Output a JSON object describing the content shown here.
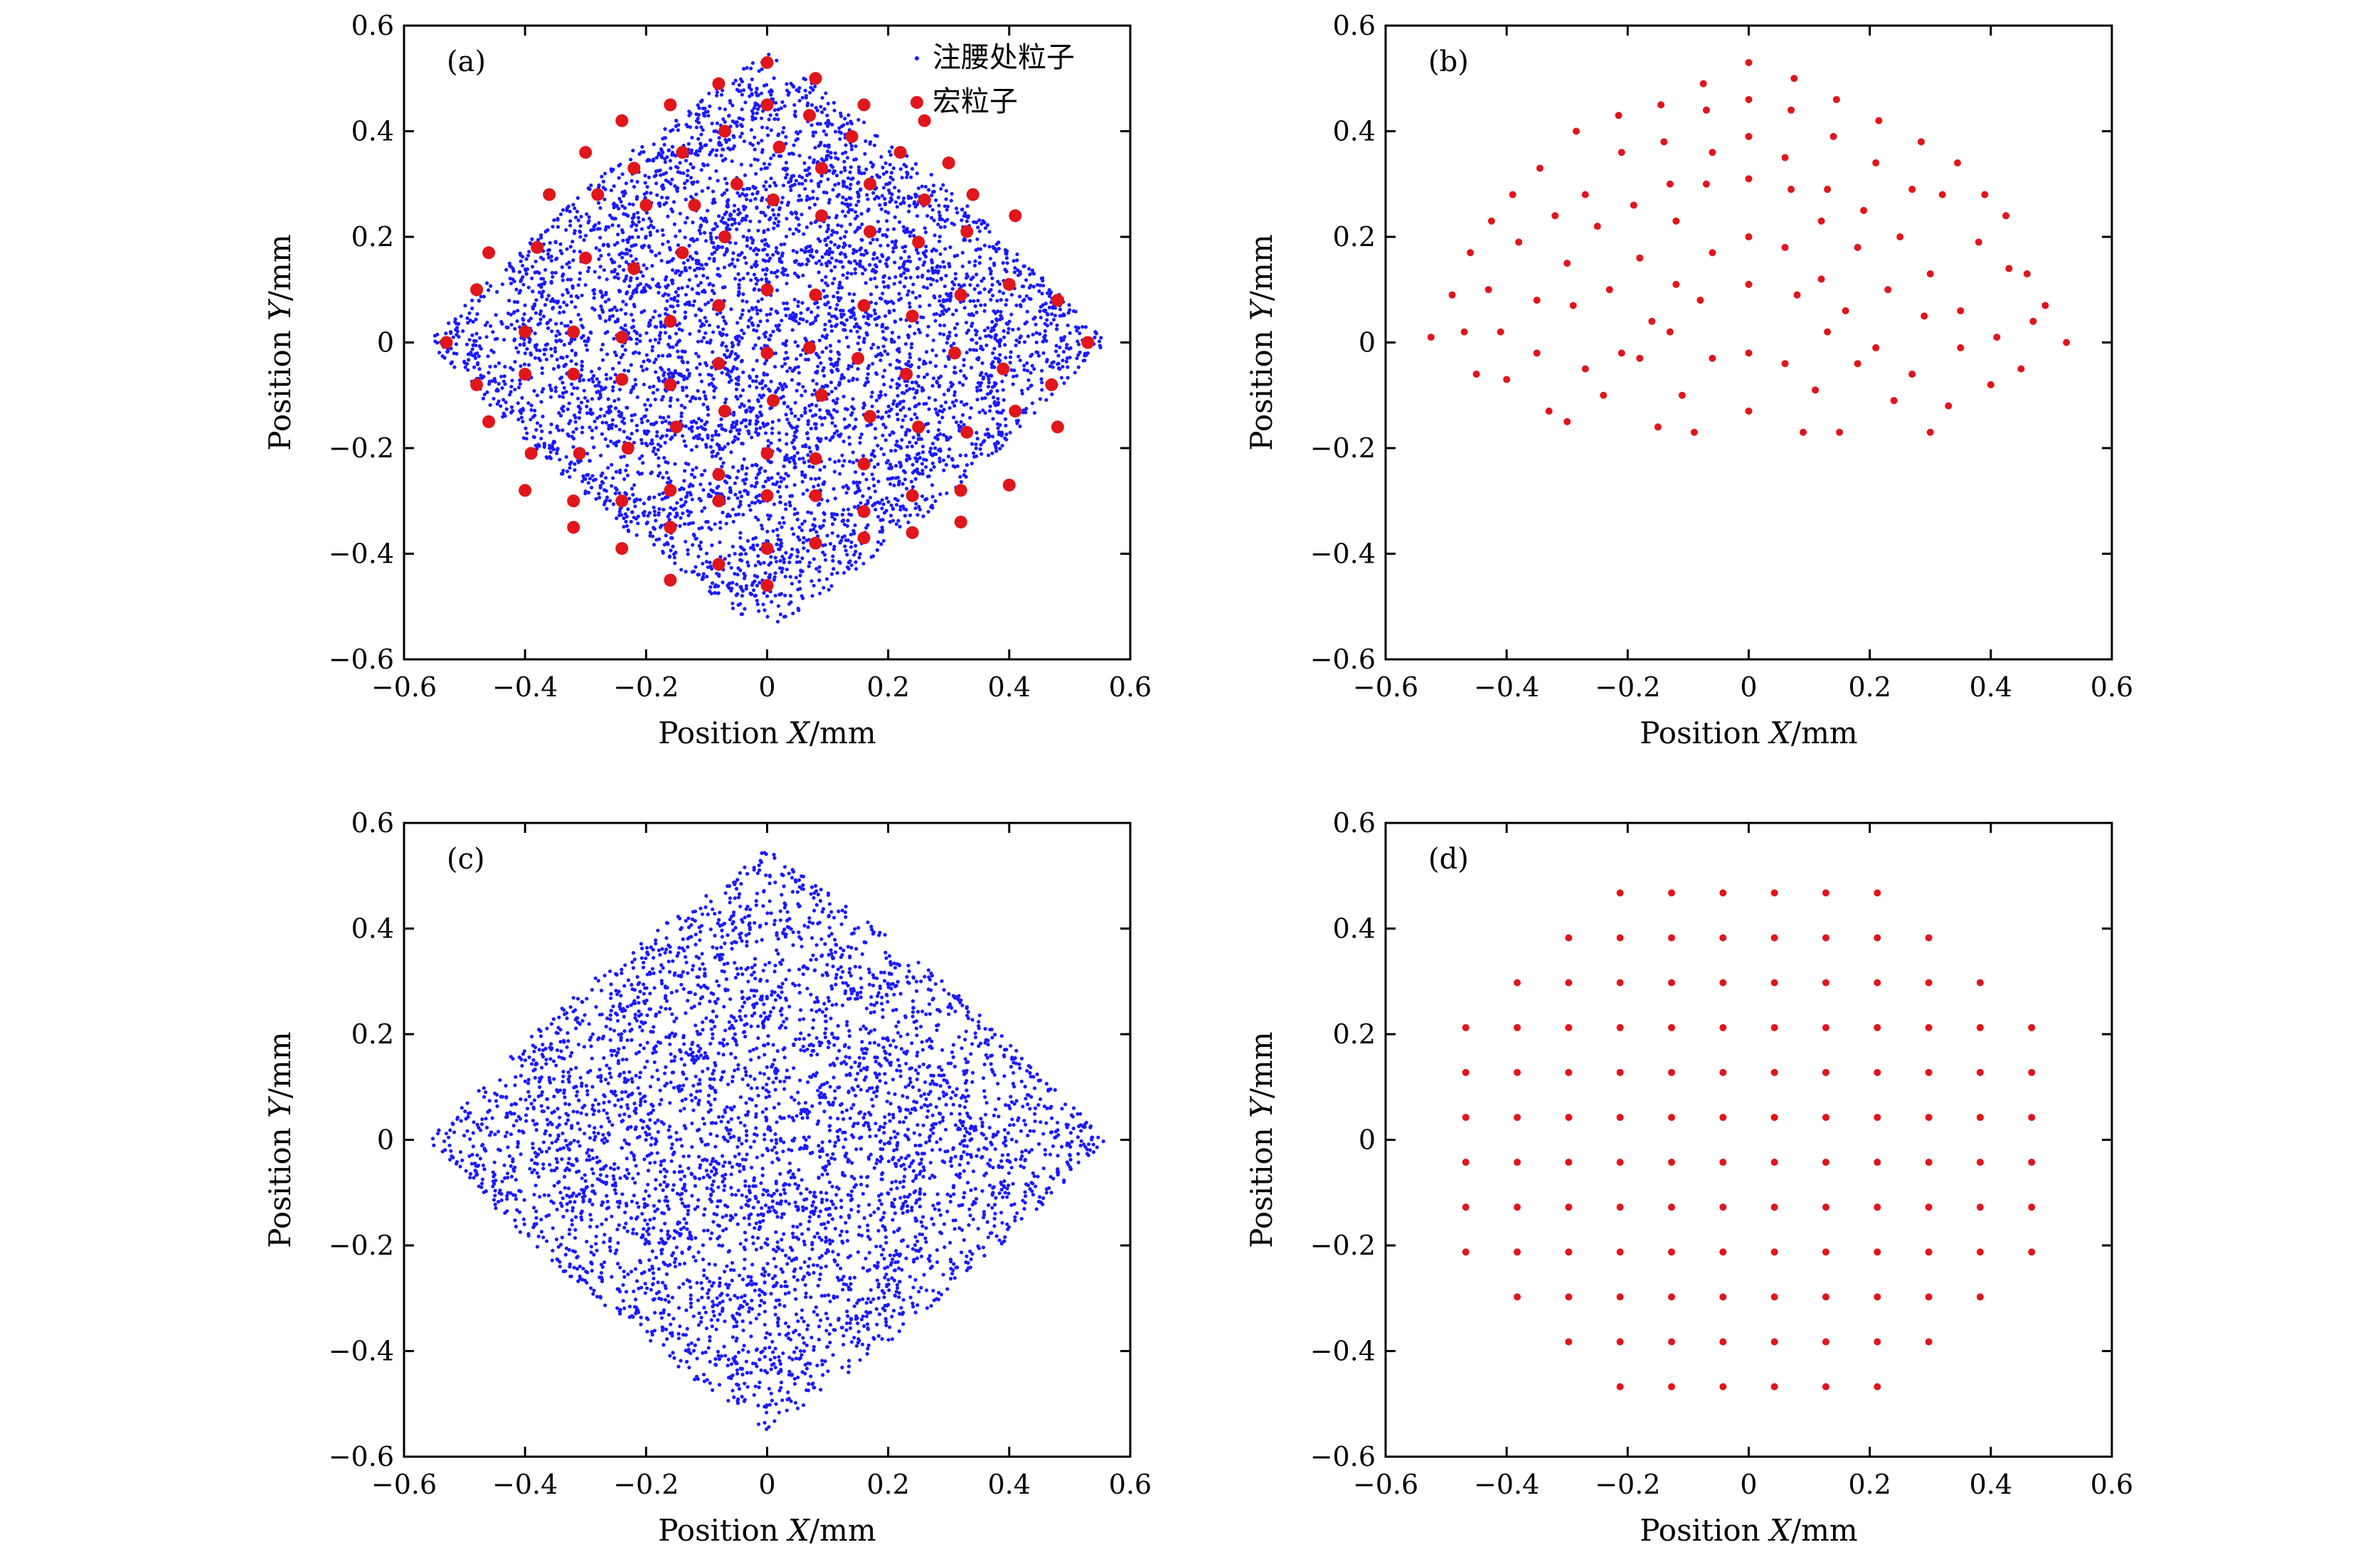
{
  "chart_data": [
    {
      "id": "a",
      "type": "scatter",
      "panel_label": "(a)",
      "xlabel": {
        "prefix": "Position ",
        "var": "X",
        "unit": "/mm"
      },
      "ylabel": {
        "prefix": "Position ",
        "var": "Y",
        "unit": "/mm"
      },
      "xlim": [
        -0.6,
        0.6
      ],
      "ylim": [
        -0.6,
        0.6
      ],
      "xticks": [
        -0.6,
        -0.4,
        -0.2,
        0,
        0.2,
        0.4,
        0.6
      ],
      "yticks": [
        -0.6,
        -0.4,
        -0.2,
        0,
        0.2,
        0.4,
        0.6
      ],
      "xtick_labels": [
        "−0.6",
        "−0.4",
        "−0.2",
        "0",
        "0.2",
        "0.4",
        "0.6"
      ],
      "ytick_labels": [
        "−0.6",
        "−0.4",
        "−0.2",
        "0",
        "0.2",
        "0.4",
        "0.6"
      ],
      "grid": false,
      "legend": {
        "placement": "top-right",
        "entries": [
          {
            "label": "注腰处粒子",
            "series": "waist"
          },
          {
            "label": "宏粒子",
            "series": "macro"
          }
        ]
      },
      "series": [
        {
          "name": "注腰处粒子",
          "ref": "waist",
          "color": "#1a1aff",
          "marker": "small-dot",
          "distribution": "dense cloud bounded by a rounded diamond, apexes at (±0.56, 0) and (0, ±0.55)"
        },
        {
          "name": "宏粒子",
          "ref": "macro",
          "color": "#e0161b",
          "marker": "large-dot",
          "x": [
            0.0,
            0.08,
            0.16,
            0.26,
            -0.08,
            -0.16,
            -0.24,
            0.0,
            0.07,
            0.14,
            0.22,
            0.3,
            -0.07,
            -0.14,
            -0.22,
            -0.3,
            0.02,
            0.09,
            0.17,
            0.26,
            0.34,
            -0.05,
            -0.12,
            -0.2,
            -0.28,
            -0.36,
            0.01,
            0.09,
            0.17,
            0.25,
            0.33,
            0.41,
            -0.07,
            -0.14,
            -0.22,
            -0.3,
            -0.38,
            -0.46,
            0.0,
            0.08,
            0.16,
            0.24,
            0.32,
            0.4,
            0.48,
            -0.08,
            -0.16,
            -0.24,
            -0.32,
            -0.4,
            -0.48,
            0.0,
            0.07,
            0.15,
            0.23,
            0.31,
            0.39,
            0.47,
            0.53,
            -0.08,
            -0.16,
            -0.24,
            -0.32,
            -0.4,
            -0.48,
            -0.53,
            0.01,
            0.09,
            0.17,
            0.25,
            0.33,
            0.41,
            0.48,
            -0.07,
            -0.15,
            -0.23,
            -0.31,
            -0.39,
            -0.46,
            0.0,
            0.08,
            0.16,
            0.24,
            0.32,
            0.4,
            -0.08,
            -0.16,
            -0.24,
            -0.32,
            -0.4,
            0.0,
            0.08,
            0.16,
            0.24,
            0.32,
            -0.08,
            -0.16,
            -0.24,
            -0.32,
            0.0,
            0.08,
            0.16,
            -0.08,
            -0.16,
            0.0
          ],
          "y": [
            0.53,
            0.5,
            0.45,
            0.42,
            0.49,
            0.45,
            0.42,
            0.45,
            0.43,
            0.39,
            0.36,
            0.34,
            0.4,
            0.36,
            0.33,
            0.36,
            0.37,
            0.33,
            0.3,
            0.27,
            0.28,
            0.3,
            0.26,
            0.26,
            0.28,
            0.28,
            0.27,
            0.24,
            0.21,
            0.19,
            0.21,
            0.24,
            0.2,
            0.17,
            0.14,
            0.16,
            0.18,
            0.17,
            0.1,
            0.09,
            0.07,
            0.05,
            0.09,
            0.11,
            0.08,
            0.07,
            0.04,
            0.01,
            0.02,
            0.02,
            0.1,
            -0.02,
            -0.01,
            -0.03,
            -0.06,
            -0.02,
            -0.05,
            -0.08,
            0.0,
            -0.04,
            -0.08,
            -0.07,
            -0.06,
            -0.06,
            -0.08,
            0.0,
            -0.11,
            -0.1,
            -0.14,
            -0.16,
            -0.17,
            -0.13,
            -0.16,
            -0.13,
            -0.16,
            -0.2,
            -0.21,
            -0.21,
            -0.15,
            -0.21,
            -0.22,
            -0.23,
            -0.29,
            -0.28,
            -0.27,
            -0.25,
            -0.28,
            -0.3,
            -0.3,
            -0.28,
            -0.29,
            -0.29,
            -0.32,
            -0.36,
            -0.34,
            -0.3,
            -0.35,
            -0.39,
            -0.35,
            -0.39,
            -0.38,
            -0.37,
            -0.42,
            -0.45,
            -0.46
          ]
        }
      ]
    },
    {
      "id": "b",
      "type": "scatter",
      "panel_label": "(b)",
      "xlabel": {
        "prefix": "Position ",
        "var": "X",
        "unit": "/mm"
      },
      "ylabel": {
        "prefix": "Position ",
        "var": "Y",
        "unit": "/mm"
      },
      "xlim": [
        -0.6,
        0.6
      ],
      "ylim": [
        -0.6,
        0.6
      ],
      "xticks": [
        -0.6,
        -0.4,
        -0.2,
        0,
        0.2,
        0.4,
        0.6
      ],
      "yticks": [
        -0.6,
        -0.4,
        -0.2,
        0,
        0.2,
        0.4,
        0.6
      ],
      "xtick_labels": [
        "−0.6",
        "−0.4",
        "−0.2",
        "0",
        "0.2",
        "0.4",
        "0.6"
      ],
      "ytick_labels": [
        "−0.6",
        "−0.4",
        "−0.2",
        "0",
        "0.2",
        "0.4",
        "0.6"
      ],
      "grid": false,
      "series": [
        {
          "ref": "macro",
          "color": "#e0161b",
          "marker": "small-dot",
          "x": [
            0.0,
            0.075,
            -0.075,
            0.145,
            -0.145,
            0.215,
            -0.215,
            0.285,
            -0.285,
            0.345,
            -0.345,
            0.39,
            -0.39,
            0.425,
            -0.425,
            0.46,
            -0.46,
            0.49,
            -0.49,
            0.525,
            -0.525,
            0.0,
            0.07,
            -0.07,
            0.14,
            -0.14,
            0.21,
            -0.21,
            0.27,
            -0.27,
            0.32,
            -0.32,
            0.38,
            -0.38,
            0.43,
            -0.43,
            0.47,
            -0.47,
            0.0,
            0.06,
            -0.06,
            0.13,
            -0.13,
            0.19,
            -0.19,
            0.25,
            -0.25,
            0.3,
            -0.3,
            0.35,
            -0.35,
            0.41,
            -0.41,
            0.45,
            -0.45,
            0.0,
            0.07,
            -0.07,
            0.12,
            -0.12,
            0.18,
            -0.18,
            0.23,
            -0.23,
            0.29,
            -0.29,
            0.35,
            -0.35,
            0.4,
            -0.4,
            0.0,
            0.06,
            -0.06,
            0.12,
            -0.12,
            0.16,
            -0.16,
            0.21,
            -0.21,
            0.27,
            -0.27,
            0.33,
            -0.33,
            0.0,
            0.08,
            -0.08,
            0.13,
            -0.13,
            0.18,
            -0.18,
            0.24,
            -0.24,
            0.3,
            -0.3,
            0.0,
            0.06,
            -0.06,
            0.11,
            -0.11,
            0.15,
            -0.15,
            0.0,
            0.09,
            -0.09
          ],
          "y": [
            0.53,
            0.5,
            0.49,
            0.46,
            0.45,
            0.42,
            0.43,
            0.38,
            0.4,
            0.34,
            0.33,
            0.28,
            0.28,
            0.24,
            0.23,
            0.13,
            0.17,
            0.07,
            0.09,
            0.0,
            0.01,
            0.46,
            0.44,
            0.44,
            0.39,
            0.38,
            0.34,
            0.36,
            0.29,
            0.28,
            0.28,
            0.24,
            0.19,
            0.19,
            0.14,
            0.1,
            0.04,
            0.02,
            0.39,
            0.35,
            0.36,
            0.29,
            0.3,
            0.25,
            0.26,
            0.2,
            0.22,
            0.13,
            0.15,
            0.06,
            0.08,
            0.01,
            0.02,
            -0.05,
            -0.06,
            0.31,
            0.29,
            0.3,
            0.23,
            0.23,
            0.18,
            0.16,
            0.1,
            0.1,
            0.05,
            0.07,
            -0.01,
            -0.02,
            -0.08,
            -0.07,
            0.2,
            0.18,
            0.17,
            0.12,
            0.11,
            0.06,
            0.04,
            -0.01,
            -0.02,
            -0.06,
            -0.05,
            -0.12,
            -0.13,
            0.11,
            0.09,
            0.08,
            0.02,
            0.02,
            -0.04,
            -0.03,
            -0.11,
            -0.1,
            -0.17,
            -0.15,
            -0.02,
            -0.04,
            -0.03,
            -0.09,
            -0.1,
            -0.17,
            -0.16,
            -0.13,
            -0.17,
            -0.17
          ]
        }
      ]
    },
    {
      "id": "c",
      "type": "scatter",
      "panel_label": "(c)",
      "xlabel": {
        "prefix": "Position ",
        "var": "X",
        "unit": "/mm"
      },
      "ylabel": {
        "prefix": "Position ",
        "var": "Y",
        "unit": "/mm"
      },
      "xlim": [
        -0.6,
        0.6
      ],
      "ylim": [
        -0.6,
        0.6
      ],
      "xticks": [
        -0.6,
        -0.4,
        -0.2,
        0,
        0.2,
        0.4,
        0.6
      ],
      "yticks": [
        -0.6,
        -0.4,
        -0.2,
        0,
        0.2,
        0.4,
        0.6
      ],
      "xtick_labels": [
        "−0.6",
        "−0.4",
        "−0.2",
        "0",
        "0.2",
        "0.4",
        "0.6"
      ],
      "ytick_labels": [
        "−0.6",
        "−0.4",
        "−0.2",
        "0",
        "0.2",
        "0.4",
        "0.6"
      ],
      "grid": false,
      "series": [
        {
          "ref": "waist",
          "color": "#1a1aff",
          "marker": "small-dot",
          "distribution": "sparse cloud bounded by a rounded diamond, apexes at (±0.56, 0) and (0, ±0.55)"
        }
      ]
    },
    {
      "id": "d",
      "type": "scatter",
      "panel_label": "(d)",
      "xlabel": {
        "prefix": "Position ",
        "var": "X",
        "unit": "/mm"
      },
      "ylabel": {
        "prefix": "Position ",
        "var": "Y",
        "unit": "/mm"
      },
      "xlim": [
        -0.6,
        0.6
      ],
      "ylim": [
        -0.6,
        0.6
      ],
      "xticks": [
        -0.6,
        -0.4,
        -0.2,
        0,
        0.2,
        0.4,
        0.6
      ],
      "yticks": [
        -0.6,
        -0.4,
        -0.2,
        0,
        0.2,
        0.4,
        0.6
      ],
      "xtick_labels": [
        "−0.6",
        "−0.4",
        "−0.2",
        "0",
        "0.2",
        "0.4",
        "0.6"
      ],
      "ytick_labels": [
        "−0.6",
        "−0.4",
        "−0.2",
        "0",
        "0.2",
        "0.4",
        "0.6"
      ],
      "grid": false,
      "series": [
        {
          "ref": "macro",
          "color": "#e0161b",
          "marker": "small-dot",
          "layout": "square lattice, pitch 0.085 mm, offset half a pitch from the origin, clipped to a circle of radius 0.52 mm"
        }
      ]
    }
  ]
}
